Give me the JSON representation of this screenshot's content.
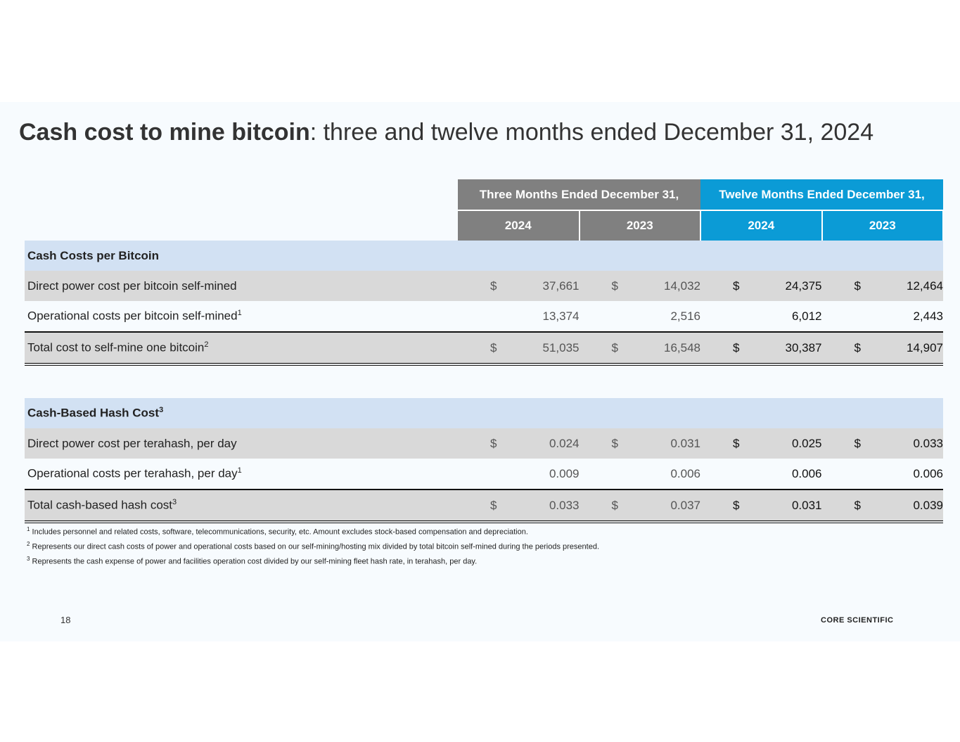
{
  "title_bold": "Cash cost to mine bitcoin",
  "title_rest": ": three and twelve months ended December 31, 2024",
  "header": {
    "group1": "Three Months Ended December 31,",
    "group2": "Twelve Months Ended December 31,",
    "years": [
      "2024",
      "2023",
      "2024",
      "2023"
    ]
  },
  "colors": {
    "gray_header": "#808080",
    "blue_header": "#0b9bd6",
    "section": "#d2e1f3",
    "shade": "#d9d9d9"
  },
  "sections": [
    {
      "title": "Cash Costs per Bitcoin",
      "title_sup": "",
      "rows": [
        {
          "label": "Direct power cost per bitcoin self-mined",
          "sup": "",
          "dollar": true,
          "values": [
            "37,661",
            "14,032",
            "24,375",
            "12,464"
          ]
        },
        {
          "label": "Operational costs per bitcoin self-mined",
          "sup": "1",
          "dollar": false,
          "values": [
            "13,374",
            "2,516",
            "6,012",
            "2,443"
          ]
        },
        {
          "label": "Total cost to self-mine one bitcoin",
          "sup": "2",
          "dollar": true,
          "values": [
            "51,035",
            "16,548",
            "30,387",
            "14,907"
          ]
        }
      ]
    },
    {
      "title": "Cash-Based Hash Cost",
      "title_sup": "3",
      "rows": [
        {
          "label": "Direct power cost per terahash, per day",
          "sup": "",
          "dollar": true,
          "values": [
            "0.024",
            "0.031",
            "0.025",
            "0.033"
          ]
        },
        {
          "label": "Operational costs per terahash, per day",
          "sup": "1",
          "dollar": false,
          "values": [
            "0.009",
            "0.006",
            "0.006",
            "0.006"
          ]
        },
        {
          "label": "Total cash-based hash cost",
          "sup": "3",
          "dollar": true,
          "values": [
            "0.033",
            "0.037",
            "0.031",
            "0.039"
          ]
        }
      ]
    }
  ],
  "currency": "$",
  "footnotes": [
    {
      "num": "1",
      "text": "Includes personnel and related costs, software, telecommunications, security, etc. Amount excludes stock-based compensation and depreciation."
    },
    {
      "num": "2",
      "text": "Represents our direct cash costs of power and operational costs based on our self-mining/hosting mix divided by total bitcoin self-mined during the periods presented."
    },
    {
      "num": "3",
      "text": "Represents the cash expense of power and facilities operation cost divided by our self-mining fleet hash rate, in terahash, per day."
    }
  ],
  "page_number": "18",
  "logo": "CORE SCIENTIFIC"
}
